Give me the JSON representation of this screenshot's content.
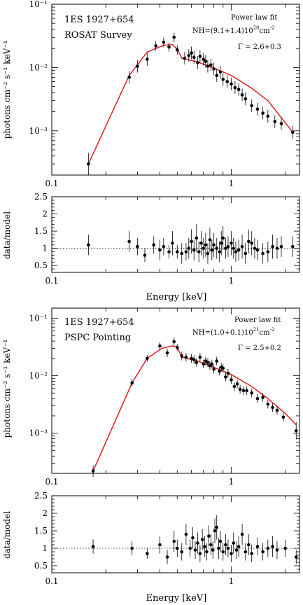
{
  "figure": {
    "xlabel": "Energy [keV]"
  },
  "chart_data": [
    {
      "type": "scatter",
      "role": "spectrum",
      "title_lines": [
        "1ES  1927+654",
        "ROSAT  Survey"
      ],
      "annotation_title": "Power law fit",
      "annotation_nh": "NH=(9.1+1.4)10",
      "annotation_nh_exp": "20",
      "annotation_nh_unit": "cm",
      "annotation_nh_unit_exp": "-2",
      "annotation_gamma": "Γ  =  2.6+0.3",
      "ylabel": "photons cm⁻² s⁻¹ keV⁻¹",
      "xscale": "log",
      "yscale": "log",
      "xlim": [
        0.1,
        2.4
      ],
      "ylim": [
        0.0002,
        0.1
      ],
      "xticks": [
        {
          "v": 0.1,
          "label": "0.1"
        },
        {
          "v": 1,
          "label": "1"
        }
      ],
      "yticks": [
        {
          "v": 0.001,
          "label": "10⁻³"
        },
        {
          "v": 0.01,
          "label": "10⁻²"
        },
        {
          "v": 0.1,
          "label": "10⁻¹"
        }
      ],
      "model": {
        "color": "#e01010",
        "x": [
          0.16,
          0.27,
          0.34,
          0.42,
          0.47,
          0.5,
          0.53,
          0.65,
          0.8,
          1.0,
          1.3,
          1.6,
          2.2
        ],
        "y": [
          0.0003,
          0.0075,
          0.0175,
          0.0225,
          0.023,
          0.0195,
          0.014,
          0.0122,
          0.0098,
          0.0075,
          0.0047,
          0.003,
          0.00095
        ]
      },
      "points": {
        "x": [
          0.16,
          0.27,
          0.3,
          0.34,
          0.38,
          0.42,
          0.45,
          0.48,
          0.5,
          0.55,
          0.58,
          0.6,
          0.62,
          0.65,
          0.67,
          0.7,
          0.72,
          0.74,
          0.77,
          0.8,
          0.83,
          0.87,
          0.9,
          0.95,
          1.0,
          1.05,
          1.1,
          1.15,
          1.2,
          1.3,
          1.4,
          1.5,
          1.6,
          1.75,
          1.9,
          2.2
        ],
        "y": [
          0.0003,
          0.007,
          0.0105,
          0.0135,
          0.022,
          0.025,
          0.021,
          0.03,
          0.019,
          0.014,
          0.0155,
          0.017,
          0.0145,
          0.012,
          0.015,
          0.0135,
          0.0125,
          0.0105,
          0.011,
          0.0095,
          0.0075,
          0.0085,
          0.0065,
          0.006,
          0.0055,
          0.0048,
          0.0045,
          0.0037,
          0.0032,
          0.0025,
          0.0022,
          0.0019,
          0.0017,
          0.0014,
          0.0013,
          0.00095
        ],
        "err": [
          0.35,
          0.2,
          0.2,
          0.2,
          0.15,
          0.15,
          0.15,
          0.15,
          0.15,
          0.2,
          0.2,
          0.2,
          0.2,
          0.2,
          0.2,
          0.2,
          0.2,
          0.2,
          0.2,
          0.2,
          0.2,
          0.2,
          0.2,
          0.2,
          0.2,
          0.2,
          0.2,
          0.2,
          0.2,
          0.2,
          0.2,
          0.2,
          0.2,
          0.2,
          0.2,
          0.2
        ]
      }
    },
    {
      "type": "scatter",
      "role": "ratio",
      "ylabel": "data/model",
      "xscale": "log",
      "yscale": "linear",
      "xlim": [
        0.1,
        2.4
      ],
      "ylim": [
        0.3,
        2.5
      ],
      "xticks": [
        {
          "v": 0.1,
          "label": "0.1"
        },
        {
          "v": 1,
          "label": "1"
        }
      ],
      "yticks": [
        {
          "v": 0.5,
          "label": "0.5"
        },
        {
          "v": 1,
          "label": "1"
        },
        {
          "v": 1.5,
          "label": "1.5"
        },
        {
          "v": 2,
          "label": "2"
        },
        {
          "v": 2.5,
          "label": "2.5"
        }
      ],
      "reference_line": 1,
      "points": {
        "x": [
          0.16,
          0.27,
          0.3,
          0.33,
          0.37,
          0.4,
          0.42,
          0.45,
          0.47,
          0.5,
          0.53,
          0.56,
          0.58,
          0.6,
          0.62,
          0.64,
          0.66,
          0.68,
          0.7,
          0.72,
          0.74,
          0.76,
          0.78,
          0.8,
          0.83,
          0.86,
          0.88,
          0.9,
          0.93,
          0.96,
          1.0,
          1.03,
          1.06,
          1.1,
          1.15,
          1.2,
          1.25,
          1.3,
          1.35,
          1.4,
          1.5,
          1.6,
          1.7,
          1.8,
          1.9,
          2.2
        ],
        "y": [
          1.1,
          1.2,
          1.05,
          0.8,
          1.1,
          0.95,
          1.05,
          0.9,
          1.15,
          0.9,
          0.85,
          0.9,
          1.0,
          1.2,
          0.95,
          1.3,
          0.9,
          1.15,
          1.0,
          1.1,
          0.85,
          1.25,
          0.95,
          1.1,
          1.0,
          0.9,
          1.15,
          1.3,
          1.0,
          1.05,
          1.15,
          1.0,
          0.9,
          0.95,
          1.05,
          0.85,
          1.2,
          1.15,
          1.0,
          0.95,
          0.85,
          0.9,
          1.05,
          1.0,
          1.05,
          1.05
        ],
        "err": [
          0.3,
          0.3,
          0.25,
          0.2,
          0.25,
          0.3,
          0.25,
          0.2,
          0.35,
          0.2,
          0.3,
          0.25,
          0.3,
          0.35,
          0.3,
          0.4,
          0.3,
          0.35,
          0.3,
          0.35,
          0.3,
          0.35,
          0.3,
          0.35,
          0.3,
          0.3,
          0.35,
          0.35,
          0.3,
          0.3,
          0.35,
          0.3,
          0.3,
          0.3,
          0.35,
          0.3,
          0.35,
          0.35,
          0.3,
          0.3,
          0.3,
          0.3,
          0.35,
          0.3,
          0.3,
          0.3
        ]
      }
    },
    {
      "type": "scatter",
      "role": "spectrum",
      "title_lines": [
        "1ES  1927+654",
        "PSPC  Pointing"
      ],
      "annotation_title": "Power law fit",
      "annotation_nh": "NH=(1.0+0.1)10",
      "annotation_nh_exp": "21",
      "annotation_nh_unit": "cm",
      "annotation_nh_unit_exp": "-2",
      "annotation_gamma": "Γ  =  2.5+0.2",
      "ylabel": "photons cm⁻² s⁻¹ keV⁻¹",
      "xscale": "log",
      "yscale": "log",
      "xlim": [
        0.1,
        2.4
      ],
      "ylim": [
        0.0002,
        0.15
      ],
      "xticks": [
        {
          "v": 0.1,
          "label": "0.1"
        },
        {
          "v": 1,
          "label": "1"
        }
      ],
      "yticks": [
        {
          "v": 0.001,
          "label": "10⁻³"
        },
        {
          "v": 0.01,
          "label": "10⁻²"
        },
        {
          "v": 0.1,
          "label": "10⁻¹"
        }
      ],
      "model": {
        "color": "#e01010",
        "x": [
          0.17,
          0.28,
          0.34,
          0.41,
          0.47,
          0.5,
          0.53,
          0.65,
          0.8,
          1.0,
          1.3,
          1.6,
          2.0,
          2.3
        ],
        "y": [
          0.00022,
          0.0075,
          0.02,
          0.03,
          0.033,
          0.031,
          0.021,
          0.018,
          0.014,
          0.0105,
          0.0065,
          0.004,
          0.0022,
          0.0014
        ]
      },
      "points": {
        "x": [
          0.17,
          0.28,
          0.34,
          0.4,
          0.44,
          0.48,
          0.5,
          0.53,
          0.56,
          0.6,
          0.62,
          0.64,
          0.67,
          0.7,
          0.72,
          0.74,
          0.76,
          0.78,
          0.8,
          0.83,
          0.86,
          0.88,
          0.9,
          0.93,
          0.96,
          1.0,
          1.04,
          1.08,
          1.12,
          1.17,
          1.22,
          1.3,
          1.4,
          1.5,
          1.6,
          1.7,
          1.8,
          1.95,
          2.3
        ],
        "y": [
          0.00022,
          0.0075,
          0.02,
          0.033,
          0.025,
          0.039,
          0.031,
          0.022,
          0.021,
          0.02,
          0.019,
          0.017,
          0.021,
          0.016,
          0.018,
          0.017,
          0.015,
          0.016,
          0.013,
          0.018,
          0.012,
          0.014,
          0.0135,
          0.0095,
          0.011,
          0.0085,
          0.0065,
          0.0072,
          0.0058,
          0.0055,
          0.0055,
          0.005,
          0.004,
          0.0042,
          0.0032,
          0.0028,
          0.0025,
          0.0019,
          0.0011
        ],
        "err": [
          0.2,
          0.12,
          0.12,
          0.12,
          0.15,
          0.15,
          0.12,
          0.15,
          0.15,
          0.15,
          0.15,
          0.15,
          0.15,
          0.15,
          0.15,
          0.15,
          0.15,
          0.15,
          0.15,
          0.15,
          0.15,
          0.15,
          0.15,
          0.15,
          0.15,
          0.15,
          0.15,
          0.15,
          0.15,
          0.15,
          0.15,
          0.15,
          0.15,
          0.15,
          0.15,
          0.15,
          0.15,
          0.15,
          0.3
        ]
      }
    },
    {
      "type": "scatter",
      "role": "ratio",
      "ylabel": "data/model",
      "xscale": "log",
      "yscale": "linear",
      "xlim": [
        0.1,
        2.4
      ],
      "ylim": [
        0.3,
        2.5
      ],
      "xticks": [
        {
          "v": 0.1,
          "label": "0.1"
        },
        {
          "v": 1,
          "label": "1"
        }
      ],
      "yticks": [
        {
          "v": 0.5,
          "label": "0.5"
        },
        {
          "v": 1,
          "label": "1"
        },
        {
          "v": 1.5,
          "label": "1.5"
        },
        {
          "v": 2,
          "label": "2"
        },
        {
          "v": 2.5,
          "label": "2.5"
        }
      ],
      "reference_line": 1,
      "points": {
        "x": [
          0.17,
          0.28,
          0.34,
          0.4,
          0.44,
          0.48,
          0.5,
          0.53,
          0.56,
          0.59,
          0.61,
          0.63,
          0.65,
          0.67,
          0.69,
          0.71,
          0.73,
          0.75,
          0.77,
          0.79,
          0.81,
          0.83,
          0.85,
          0.87,
          0.9,
          0.93,
          0.96,
          1.0,
          1.03,
          1.07,
          1.1,
          1.15,
          1.2,
          1.25,
          1.3,
          1.4,
          1.5,
          1.6,
          1.7,
          1.8,
          2.0,
          2.3
        ],
        "y": [
          1.05,
          1.0,
          0.85,
          1.1,
          0.75,
          1.2,
          1.0,
          0.9,
          1.4,
          1.0,
          1.3,
          0.95,
          1.15,
          0.85,
          1.25,
          1.05,
          0.9,
          1.35,
          1.1,
          0.95,
          1.5,
          1.6,
          1.0,
          1.2,
          0.9,
          1.1,
          1.0,
          0.85,
          1.15,
          0.95,
          1.05,
          1.4,
          0.9,
          1.1,
          0.85,
          1.05,
          0.9,
          1.0,
          1.05,
          0.95,
          1.0,
          0.75
        ],
        "err": [
          0.2,
          0.2,
          0.15,
          0.25,
          0.2,
          0.3,
          0.25,
          0.25,
          0.3,
          0.25,
          0.3,
          0.25,
          0.3,
          0.25,
          0.3,
          0.3,
          0.25,
          0.3,
          0.3,
          0.25,
          0.35,
          0.35,
          0.3,
          0.3,
          0.25,
          0.3,
          0.25,
          0.25,
          0.3,
          0.25,
          0.3,
          0.3,
          0.25,
          0.3,
          0.25,
          0.25,
          0.25,
          0.25,
          0.3,
          0.25,
          0.25,
          0.2
        ]
      }
    }
  ]
}
